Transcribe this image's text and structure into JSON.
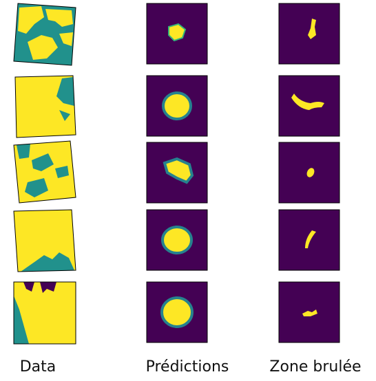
{
  "columns": [
    "Data",
    "Prédictions",
    "Zone brulée"
  ]
}
